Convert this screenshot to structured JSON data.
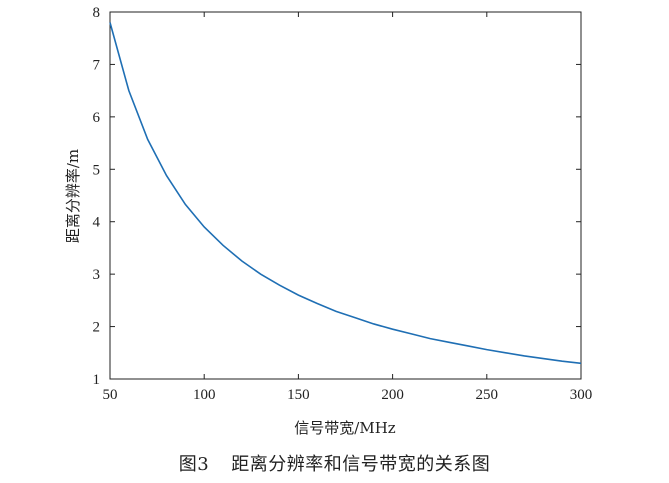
{
  "caption": {
    "figure_number": "图3",
    "text": "距离分辨率和信号带宽的关系图"
  },
  "chart_data": {
    "type": "line",
    "title": "",
    "xlabel": "信号带宽/MHz",
    "ylabel": "距离分辨率/m",
    "xlim": [
      50,
      300
    ],
    "ylim": [
      1,
      8
    ],
    "xticks": [
      50,
      100,
      150,
      200,
      250,
      300
    ],
    "yticks": [
      1,
      2,
      3,
      4,
      5,
      6,
      7,
      8
    ],
    "grid": false,
    "legend": "none",
    "line_color": "#1f6fb4",
    "series": [
      {
        "x": [
          50,
          60,
          70,
          80,
          90,
          100,
          110,
          120,
          130,
          140,
          150,
          160,
          170,
          180,
          190,
          200,
          210,
          220,
          230,
          240,
          250,
          260,
          270,
          280,
          290,
          300
        ],
        "values": [
          7.8,
          6.5,
          5.57,
          4.88,
          4.33,
          3.9,
          3.55,
          3.25,
          3.0,
          2.79,
          2.6,
          2.44,
          2.29,
          2.17,
          2.05,
          1.95,
          1.86,
          1.77,
          1.7,
          1.63,
          1.56,
          1.5,
          1.44,
          1.39,
          1.34,
          1.3
        ]
      }
    ]
  }
}
